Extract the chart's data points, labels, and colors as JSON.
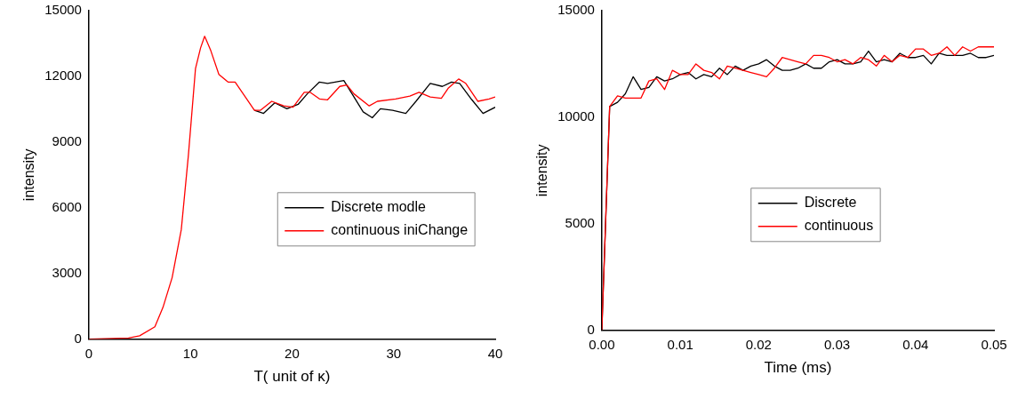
{
  "chart_data": [
    {
      "type": "line",
      "xlabel": "T( unit of κ)",
      "ylabel": "intensity",
      "xlim": [
        0,
        40
      ],
      "xticks": [
        0,
        10,
        20,
        30,
        40
      ],
      "ylim": [
        0,
        15000
      ],
      "yticks": [
        0,
        3000,
        6000,
        9000,
        12000,
        15000
      ],
      "legend": "center right",
      "series": [
        {
          "name": "Discrete modle",
          "color": "#000000",
          "x": [
            16.3,
            17.2,
            18.3,
            19.5,
            20.6,
            21.5,
            22.7,
            23.5,
            25.1,
            26.1,
            27,
            27.9,
            28.7,
            29.9,
            31.2,
            32.2,
            33.6,
            34.8,
            35.7,
            36.5,
            37.7,
            38.8,
            40
          ],
          "values": [
            10450,
            10310,
            10790,
            10520,
            10720,
            11200,
            11740,
            11680,
            11810,
            11060,
            10380,
            10110,
            10520,
            10450,
            10310,
            10860,
            11680,
            11540,
            11740,
            11680,
            10930,
            10310,
            10590
          ]
        },
        {
          "name": "continuous iniChange",
          "color": "#ff0000",
          "x": [
            0,
            3.9,
            5,
            6.5,
            7.3,
            8.2,
            9.1,
            9.8,
            10.5,
            11,
            11.4,
            12,
            12.8,
            13.7,
            14.4,
            15.3,
            16.3,
            16.9,
            18,
            19.2,
            20.1,
            21.2,
            21.8,
            22.7,
            23.5,
            24.7,
            25.4,
            26.1,
            27.6,
            28.4,
            30.2,
            31.6,
            32.5,
            33.6,
            34.7,
            35.4,
            36.4,
            37.1,
            38.3,
            39.4,
            40
          ],
          "values": [
            0,
            50,
            150,
            560,
            1450,
            2810,
            5000,
            8400,
            12360,
            13300,
            13830,
            13180,
            12090,
            11740,
            11740,
            11130,
            10450,
            10450,
            10860,
            10650,
            10590,
            11270,
            11270,
            10970,
            10930,
            11540,
            11610,
            11200,
            10650,
            10860,
            10970,
            11100,
            11270,
            11060,
            11000,
            11470,
            11880,
            11680,
            10860,
            10970,
            11060
          ]
        }
      ]
    },
    {
      "type": "line",
      "xlabel": "Time (ms)",
      "ylabel": "intensity",
      "xlim": [
        0,
        0.05
      ],
      "xticks": [
        {
          "value": 0,
          "label": "0.00"
        },
        0.01,
        0.02,
        0.03,
        0.04,
        0.05
      ],
      "ylim": [
        0,
        15000
      ],
      "yticks": [
        0,
        5000,
        10000,
        15000
      ],
      "legend": "center",
      "x": [
        0,
        0.001,
        0.002,
        0.003,
        0.004,
        0.005,
        0.006,
        0.007,
        0.008,
        0.009,
        0.01,
        0.011,
        0.012,
        0.013,
        0.014,
        0.015,
        0.016,
        0.017,
        0.018,
        0.019,
        0.02,
        0.021,
        0.022,
        0.023,
        0.024,
        0.025,
        0.026,
        0.027,
        0.028,
        0.029,
        0.03,
        0.031,
        0.032,
        0.033,
        0.034,
        0.035,
        0.036,
        0.037,
        0.038,
        0.039,
        0.04,
        0.041,
        0.042,
        0.043,
        0.044,
        0.045,
        0.046,
        0.047,
        0.048,
        0.049,
        0.05
      ],
      "series": [
        {
          "name": "Discrete",
          "color": "#000000",
          "values": [
            0,
            10500,
            10700,
            11100,
            11900,
            11300,
            11400,
            11900,
            11700,
            11800,
            12000,
            12100,
            11800,
            12000,
            11900,
            12300,
            12000,
            12400,
            12200,
            12400,
            12500,
            12700,
            12400,
            12200,
            12200,
            12300,
            12500,
            12300,
            12300,
            12600,
            12700,
            12500,
            12500,
            12600,
            13100,
            12600,
            12700,
            12600,
            13000,
            12800,
            12800,
            12900,
            12500,
            13000,
            12900,
            12900,
            12900,
            13000,
            12800,
            12800,
            12900
          ]
        },
        {
          "name": "continuous",
          "color": "#ff0000",
          "values": [
            0,
            10500,
            11000,
            10900,
            10900,
            10900,
            11700,
            11800,
            11300,
            12200,
            12000,
            12000,
            12500,
            12200,
            12100,
            11800,
            12400,
            12300,
            12200,
            12100,
            12000,
            11900,
            12300,
            12800,
            12700,
            12600,
            12500,
            12900,
            12900,
            12800,
            12600,
            12700,
            12500,
            12800,
            12700,
            12400,
            12900,
            12600,
            12900,
            12800,
            13200,
            13200,
            12900,
            13000,
            13300,
            12900,
            13300,
            13100,
            13300,
            13300,
            13300
          ]
        }
      ]
    }
  ]
}
